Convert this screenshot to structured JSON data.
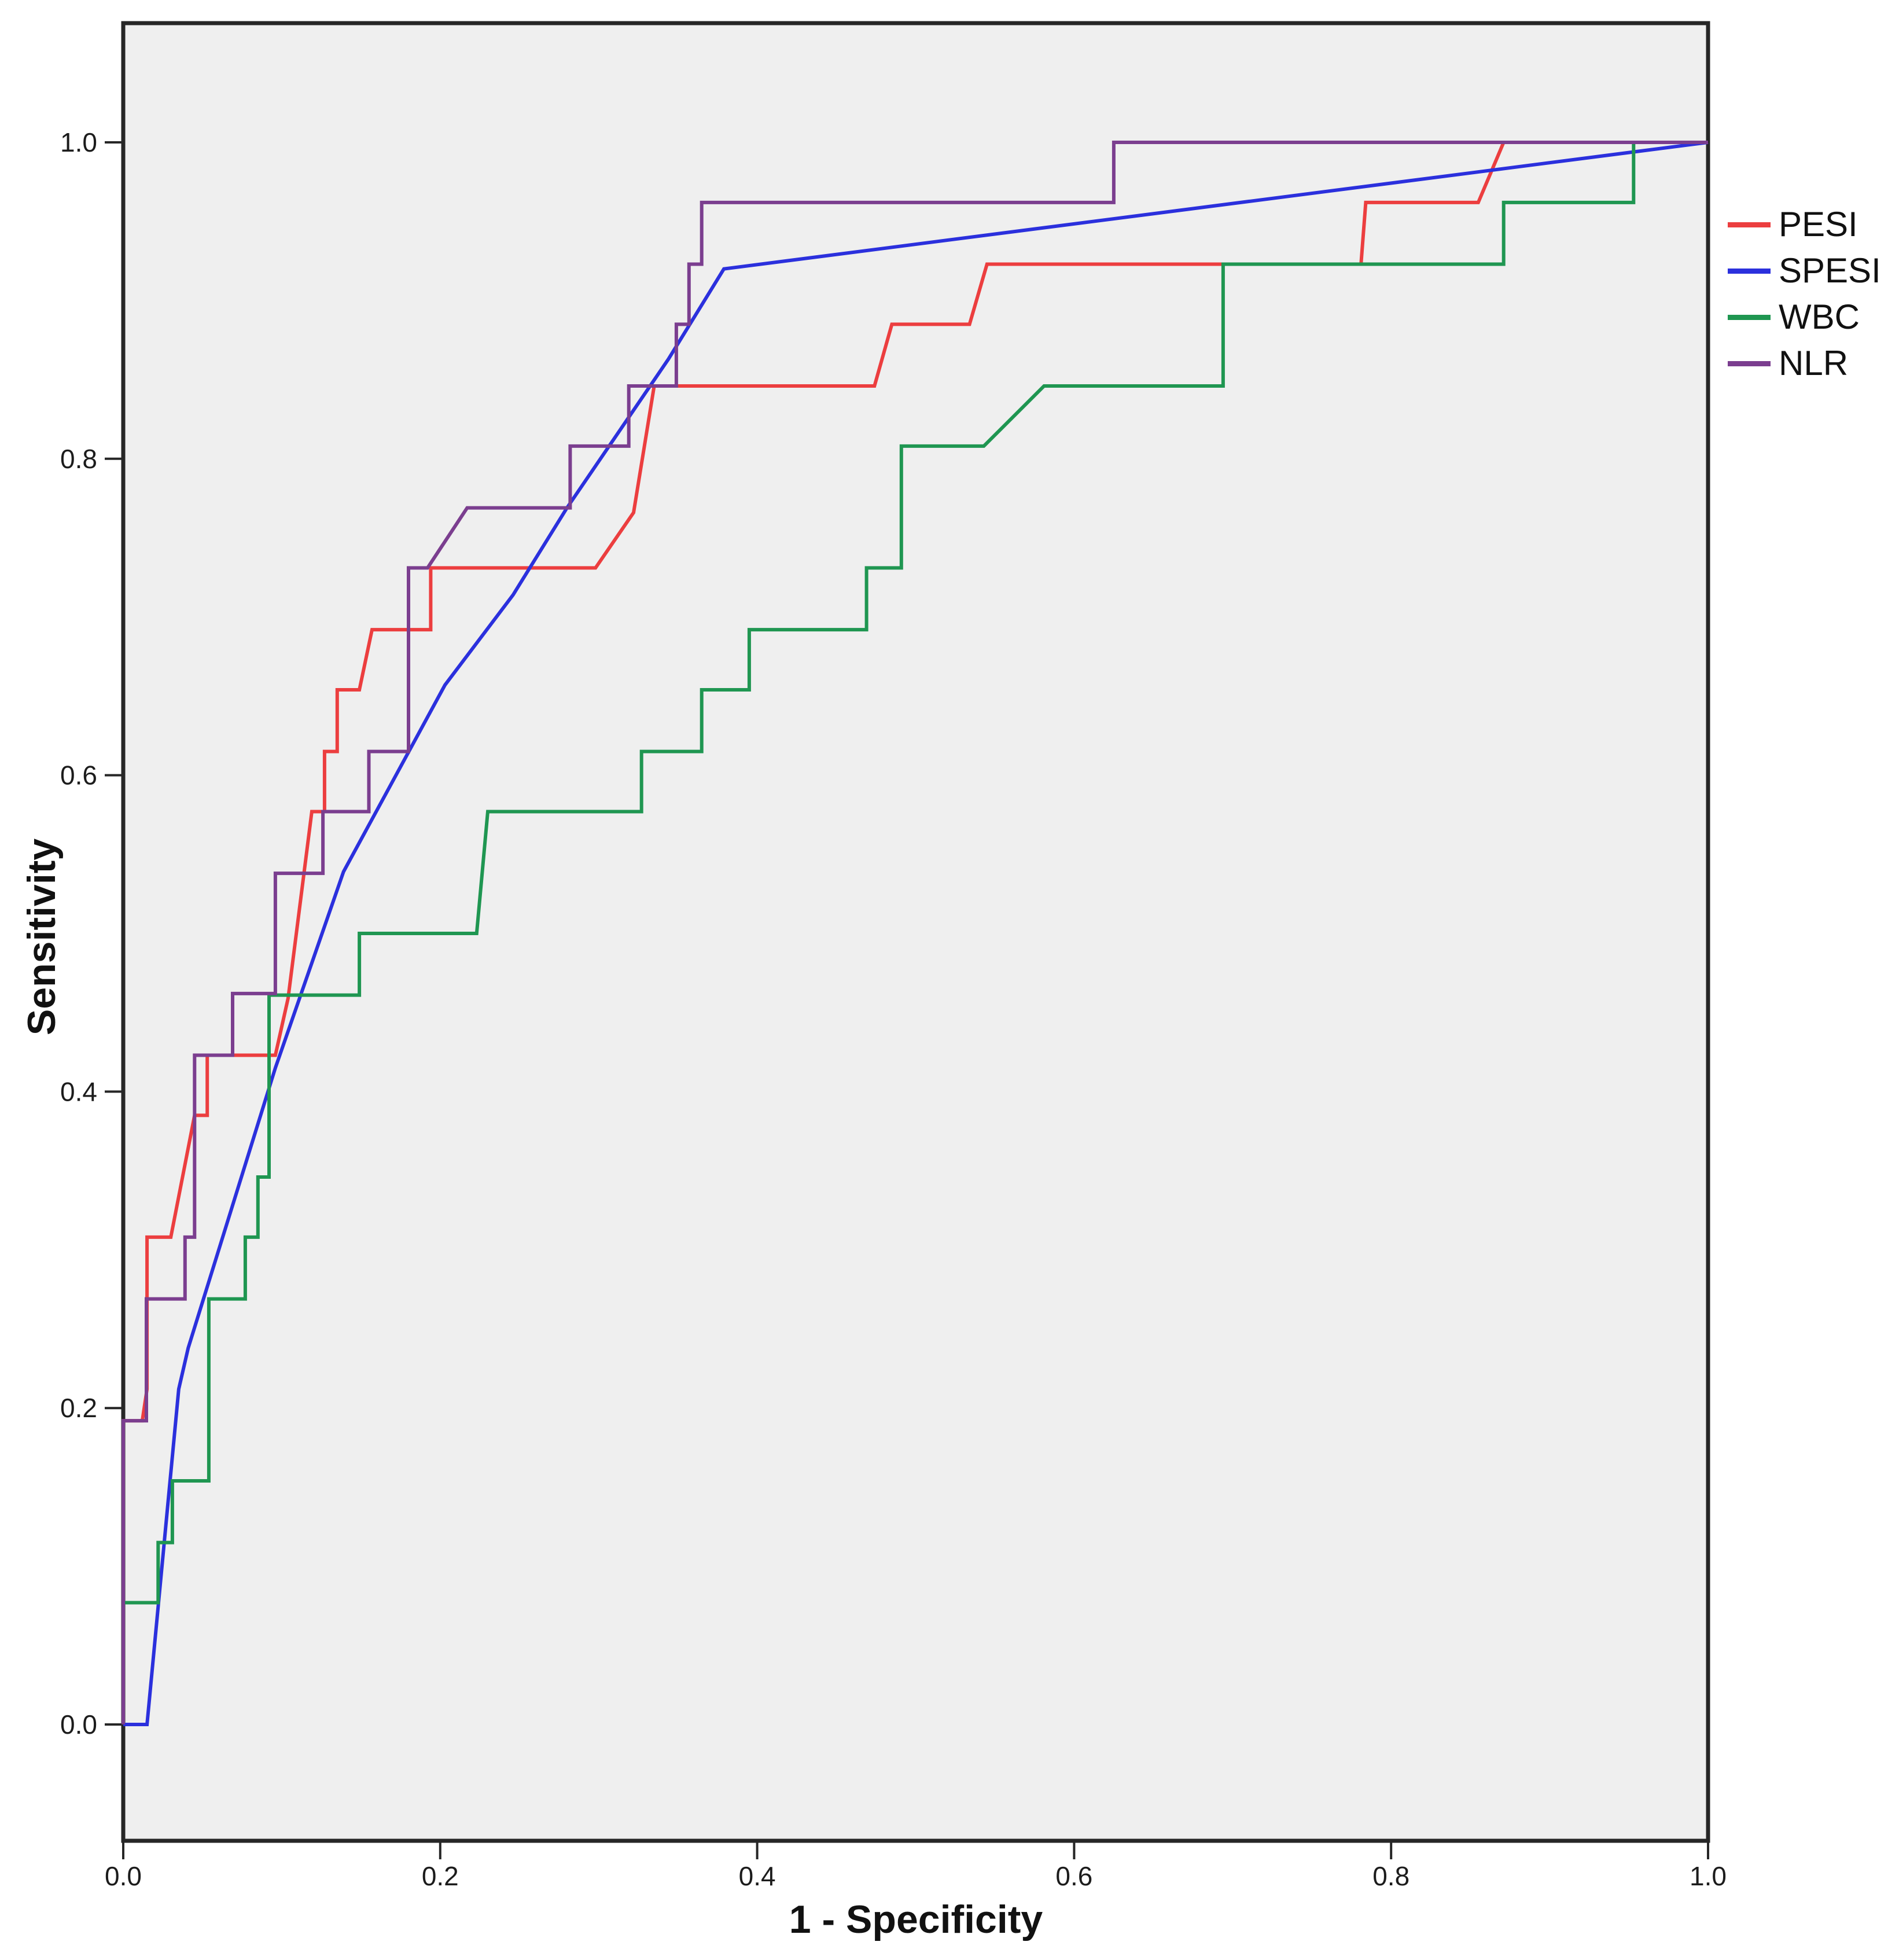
{
  "chart_data": {
    "type": "line",
    "subtype": "roc-step-curves",
    "title": "",
    "xlabel": "1 - Specificity",
    "ylabel": "Sensitivity",
    "xlim": [
      0.0,
      1.0
    ],
    "ylim": [
      0.0,
      1.0
    ],
    "x_ticks": [
      "0.0",
      "0.2",
      "0.4",
      "0.6",
      "0.8",
      "1.0"
    ],
    "y_ticks": [
      "0.0",
      "0.2",
      "0.4",
      "0.6",
      "0.8",
      "1.0"
    ],
    "x_tick_values": [
      0.0,
      0.2,
      0.4,
      0.6,
      0.8,
      1.0
    ],
    "y_tick_values": [
      0.0,
      0.2,
      0.4,
      0.6,
      0.8,
      1.0
    ],
    "grid": false,
    "legend_position": "right",
    "plot_background": "#efefef",
    "frame_color": "#262626",
    "series": [
      {
        "name": "PESI",
        "color": "#ec3e3f",
        "points": [
          [
            0,
            0
          ],
          [
            0,
            0.192
          ],
          [
            0.012,
            0.192
          ],
          [
            0.015,
            0.212
          ],
          [
            0.015,
            0.308
          ],
          [
            0.03,
            0.308
          ],
          [
            0.045,
            0.385
          ],
          [
            0.053,
            0.385
          ],
          [
            0.053,
            0.423
          ],
          [
            0.096,
            0.423
          ],
          [
            0.104,
            0.459
          ],
          [
            0.119,
            0.577
          ],
          [
            0.127,
            0.577
          ],
          [
            0.127,
            0.615
          ],
          [
            0.135,
            0.615
          ],
          [
            0.135,
            0.654
          ],
          [
            0.149,
            0.654
          ],
          [
            0.157,
            0.692
          ],
          [
            0.194,
            0.692
          ],
          [
            0.194,
            0.731
          ],
          [
            0.298,
            0.731
          ],
          [
            0.322,
            0.766
          ],
          [
            0.335,
            0.846
          ],
          [
            0.474,
            0.846
          ],
          [
            0.485,
            0.885
          ],
          [
            0.534,
            0.885
          ],
          [
            0.545,
            0.923
          ],
          [
            0.781,
            0.923
          ],
          [
            0.784,
            0.962
          ],
          [
            0.855,
            0.962
          ],
          [
            0.871,
            1
          ],
          [
            1,
            1
          ]
        ]
      },
      {
        "name": "SPESI",
        "color": "#2b30dd",
        "points": [
          [
            0,
            0
          ],
          [
            0.015,
            0
          ],
          [
            0.035,
            0.212
          ],
          [
            0.041,
            0.238
          ],
          [
            0.096,
            0.415
          ],
          [
            0.139,
            0.539
          ],
          [
            0.203,
            0.657
          ],
          [
            0.246,
            0.714
          ],
          [
            0.28,
            0.769
          ],
          [
            0.344,
            0.863
          ],
          [
            0.379,
            0.92
          ],
          [
            1,
            1
          ]
        ]
      },
      {
        "name": "WBC",
        "color": "#1f9651",
        "points": [
          [
            0,
            0
          ],
          [
            0,
            0.077
          ],
          [
            0.022,
            0.077
          ],
          [
            0.022,
            0.115
          ],
          [
            0.031,
            0.115
          ],
          [
            0.031,
            0.154
          ],
          [
            0.054,
            0.154
          ],
          [
            0.054,
            0.269
          ],
          [
            0.077,
            0.269
          ],
          [
            0.077,
            0.308
          ],
          [
            0.085,
            0.308
          ],
          [
            0.085,
            0.346
          ],
          [
            0.092,
            0.346
          ],
          [
            0.092,
            0.461
          ],
          [
            0.149,
            0.461
          ],
          [
            0.149,
            0.5
          ],
          [
            0.223,
            0.5
          ],
          [
            0.23,
            0.577
          ],
          [
            0.327,
            0.577
          ],
          [
            0.327,
            0.615
          ],
          [
            0.365,
            0.615
          ],
          [
            0.365,
            0.654
          ],
          [
            0.395,
            0.654
          ],
          [
            0.395,
            0.692
          ],
          [
            0.469,
            0.692
          ],
          [
            0.469,
            0.731
          ],
          [
            0.491,
            0.731
          ],
          [
            0.491,
            0.808
          ],
          [
            0.543,
            0.808
          ],
          [
            0.581,
            0.846
          ],
          [
            0.694,
            0.846
          ],
          [
            0.694,
            0.923
          ],
          [
            0.871,
            0.923
          ],
          [
            0.871,
            0.962
          ],
          [
            0.953,
            0.962
          ],
          [
            0.953,
            1
          ],
          [
            1,
            1
          ]
        ]
      },
      {
        "name": "NLR",
        "color": "#7b3e8f",
        "points": [
          [
            0,
            0
          ],
          [
            0,
            0.192
          ],
          [
            0.0146,
            0.192
          ],
          [
            0.0146,
            0.269
          ],
          [
            0.039,
            0.269
          ],
          [
            0.039,
            0.308
          ],
          [
            0.045,
            0.308
          ],
          [
            0.045,
            0.423
          ],
          [
            0.069,
            0.423
          ],
          [
            0.069,
            0.462
          ],
          [
            0.096,
            0.462
          ],
          [
            0.096,
            0.538
          ],
          [
            0.126,
            0.538
          ],
          [
            0.126,
            0.577
          ],
          [
            0.155,
            0.577
          ],
          [
            0.155,
            0.615
          ],
          [
            0.18,
            0.615
          ],
          [
            0.18,
            0.731
          ],
          [
            0.192,
            0.731
          ],
          [
            0.217,
            0.769
          ],
          [
            0.282,
            0.769
          ],
          [
            0.282,
            0.808
          ],
          [
            0.319,
            0.808
          ],
          [
            0.319,
            0.846
          ],
          [
            0.349,
            0.846
          ],
          [
            0.349,
            0.885
          ],
          [
            0.357,
            0.885
          ],
          [
            0.357,
            0.923
          ],
          [
            0.365,
            0.923
          ],
          [
            0.365,
            0.962
          ],
          [
            0.625,
            0.962
          ],
          [
            0.625,
            1
          ],
          [
            1,
            1
          ]
        ]
      }
    ]
  }
}
